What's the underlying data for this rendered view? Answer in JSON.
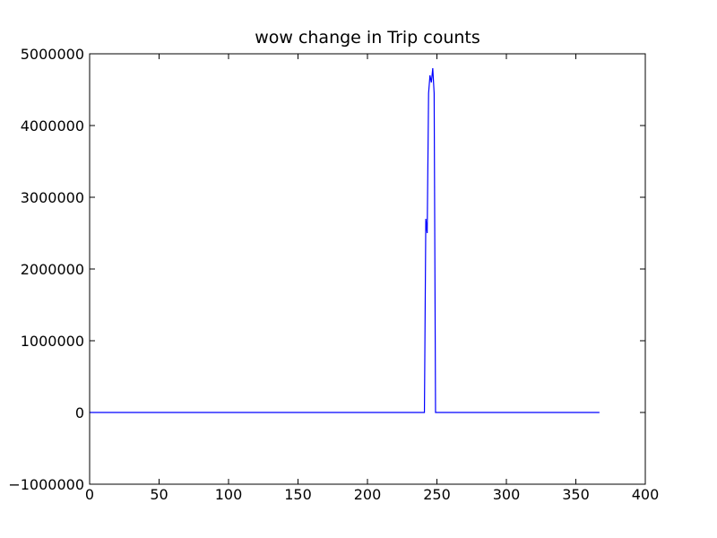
{
  "chart_data": {
    "type": "line",
    "title": "wow change in Trip counts",
    "xlabel": "",
    "ylabel": "",
    "xlim": [
      0,
      400
    ],
    "ylim": [
      -1000000,
      5000000
    ],
    "x_ticks": [
      0,
      50,
      100,
      150,
      200,
      250,
      300,
      350,
      400
    ],
    "y_ticks": [
      -1000000,
      0,
      1000000,
      2000000,
      3000000,
      4000000,
      5000000
    ],
    "x_tick_labels": [
      "0",
      "50",
      "100",
      "150",
      "200",
      "250",
      "300",
      "350",
      "400"
    ],
    "y_tick_labels": [
      "−1000000",
      "0",
      "1000000",
      "2000000",
      "3000000",
      "4000000",
      "5000000"
    ],
    "grid": false,
    "series": [
      {
        "color": "#0000ff",
        "x": [
          0,
          241,
          242,
          243,
          244,
          245,
          246,
          247,
          248,
          249,
          250,
          367
        ],
        "y": [
          0,
          0,
          2700000,
          2500000,
          4450000,
          4700000,
          4600000,
          4800000,
          4450000,
          0,
          0,
          0
        ]
      }
    ]
  }
}
